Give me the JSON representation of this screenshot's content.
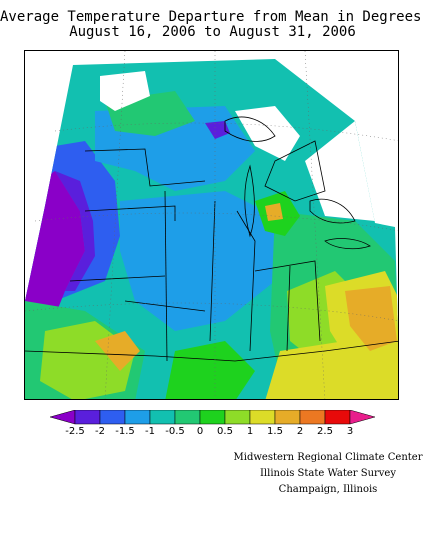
{
  "title": {
    "line1": "Average Temperature Departure from Mean in Degrees F",
    "line2": "August 16, 2006 to August 31, 2006"
  },
  "legend": {
    "tick_labels": [
      "-2.5",
      "-2",
      "-1.5",
      "-1",
      "-0.5",
      "0",
      "0.5",
      "1",
      "1.5",
      "2",
      "2.5",
      "3"
    ],
    "colors": [
      "#8a00c8",
      "#5a1fdc",
      "#2e5ef0",
      "#1e9ee8",
      "#12c0b0",
      "#22c873",
      "#1ed21e",
      "#8edc28",
      "#dcdc28",
      "#e6ac28",
      "#ec7822",
      "#e80a0a",
      "#e81e8c"
    ]
  },
  "credits": [
    "Midwestern Regional Climate Center",
    "Illinois State Water Survey",
    "Champaign, Illinois"
  ],
  "map": {
    "field_colors": {
      "purple": "#8a00c8",
      "violet": "#5a1fdc",
      "blue": "#2e5ef0",
      "cyan": "#1e9ee8",
      "teal": "#12c0b0",
      "green_teal": "#22c873",
      "green": "#1ed21e",
      "yellow_green": "#8edc28",
      "yellow": "#dcdc28",
      "orange": "#e6ac28",
      "dark_orange": "#ec7822"
    }
  }
}
